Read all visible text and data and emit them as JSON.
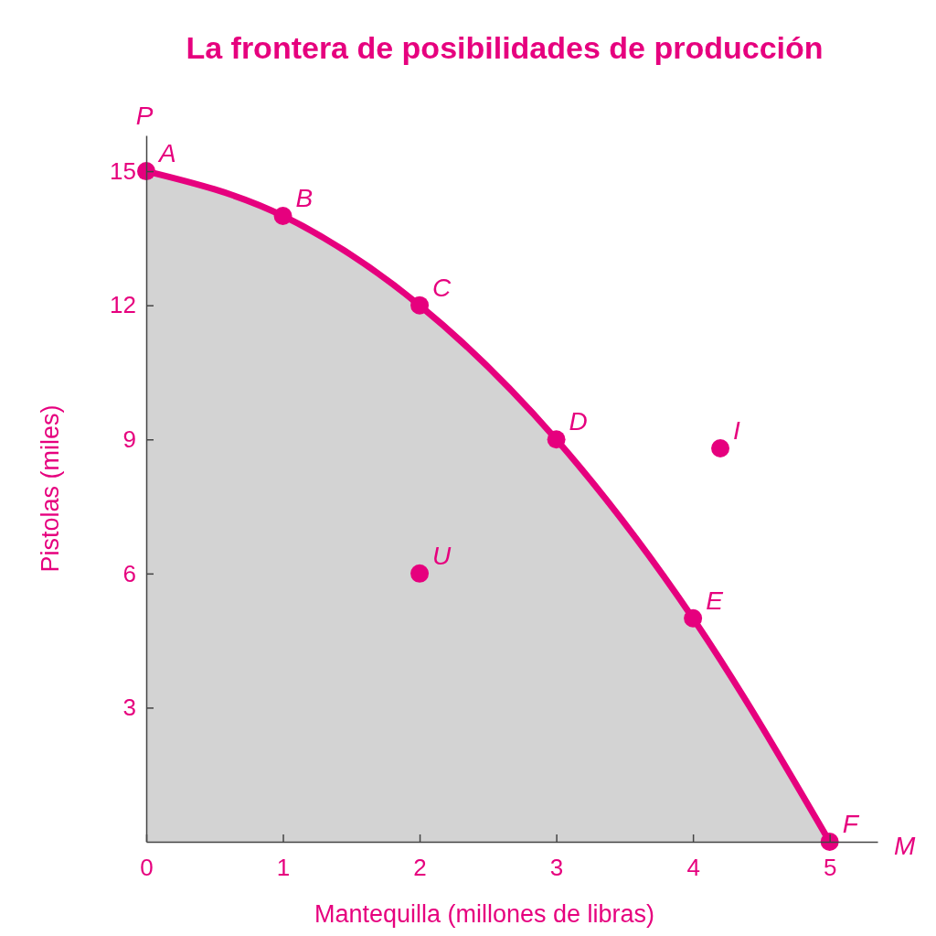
{
  "chart_data": {
    "type": "area",
    "title": "La frontera de posibilidades de producción",
    "xlabel": "Mantequilla (millones de libras)",
    "ylabel": "Pistolas (miles)",
    "xlim": [
      0,
      5.35
    ],
    "ylim": [
      0,
      15.8
    ],
    "xticks": [
      0,
      1,
      2,
      3,
      4,
      5
    ],
    "yticks": [
      3,
      6,
      9,
      12,
      15
    ],
    "grid": false,
    "marker": "circle",
    "line_style": "solid",
    "series": [
      {
        "color": "#e6007e",
        "x": [
          0,
          1,
          2,
          3,
          4,
          5
        ],
        "values": [
          15,
          14,
          12,
          9,
          5,
          0
        ]
      },
      {
        "type": "scatter",
        "color": "#e6007e",
        "x": [
          2,
          4.2
        ],
        "values": [
          6,
          8.8
        ]
      }
    ],
    "annotations": [
      {
        "text": "A",
        "x": 0,
        "y": 15
      },
      {
        "text": "B",
        "x": 1,
        "y": 14
      },
      {
        "text": "C",
        "x": 2,
        "y": 12
      },
      {
        "text": "D",
        "x": 3,
        "y": 9
      },
      {
        "text": "E",
        "x": 4,
        "y": 5
      },
      {
        "text": "F",
        "x": 5,
        "y": 0
      },
      {
        "text": "U",
        "x": 2,
        "y": 6
      },
      {
        "text": "I",
        "x": 4.2,
        "y": 8.8
      },
      "P",
      "M"
    ]
  }
}
